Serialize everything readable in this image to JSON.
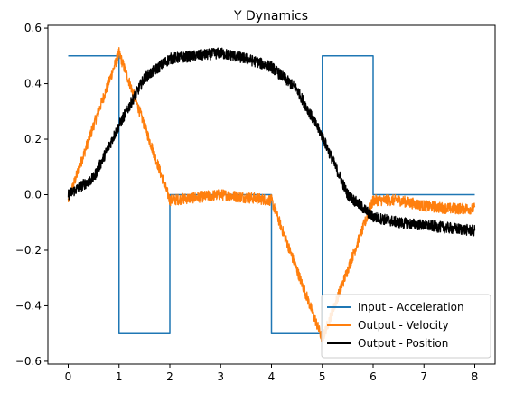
{
  "chart_data": {
    "type": "line",
    "title": "Y Dynamics",
    "xlabel": "",
    "ylabel": "",
    "xlim": [
      -0.4,
      8.4
    ],
    "ylim": [
      -0.61,
      0.61
    ],
    "xticks": [
      0,
      1,
      2,
      3,
      4,
      5,
      6,
      7,
      8
    ],
    "yticks": [
      -0.6,
      -0.4,
      -0.2,
      0.0,
      0.2,
      0.4,
      0.6
    ],
    "ytick_labels": [
      "−0.6",
      "−0.4",
      "−0.2",
      "0.0",
      "0.2",
      "0.4",
      "0.6"
    ],
    "grid": false,
    "legend_position": "lower-right",
    "series": [
      {
        "name": "Input - Acceleration",
        "color": "#1f77b4",
        "step": true,
        "x": [
          0,
          1,
          1,
          2,
          2,
          4,
          4,
          5,
          5,
          6,
          6,
          8
        ],
        "y": [
          0.5,
          0.5,
          -0.5,
          -0.5,
          0,
          0,
          -0.5,
          -0.5,
          0.5,
          0.5,
          0,
          0
        ]
      },
      {
        "name": "Output - Velocity",
        "color": "#ff7f0e",
        "noise": 0.02,
        "x": [
          0,
          0.5,
          1.0,
          1.5,
          2.0,
          2.5,
          3.0,
          3.5,
          4.0,
          4.5,
          5.0,
          5.5,
          6.0,
          6.5,
          7.0,
          7.5,
          8.0
        ],
        "y": [
          -0.02,
          0.25,
          0.51,
          0.25,
          -0.02,
          -0.01,
          0.0,
          -0.01,
          -0.02,
          -0.27,
          -0.52,
          -0.27,
          -0.02,
          -0.02,
          -0.04,
          -0.05,
          -0.05
        ]
      },
      {
        "name": "Output - Position",
        "color": "#000000",
        "noise": 0.02,
        "x": [
          0,
          0.5,
          1.0,
          1.5,
          2.0,
          2.5,
          3.0,
          3.5,
          4.0,
          4.5,
          5.0,
          5.5,
          6.0,
          6.5,
          7.0,
          7.5,
          8.0
        ],
        "y": [
          0.0,
          0.06,
          0.25,
          0.42,
          0.49,
          0.5,
          0.51,
          0.49,
          0.46,
          0.38,
          0.21,
          0.0,
          -0.08,
          -0.1,
          -0.11,
          -0.12,
          -0.13
        ]
      }
    ]
  }
}
